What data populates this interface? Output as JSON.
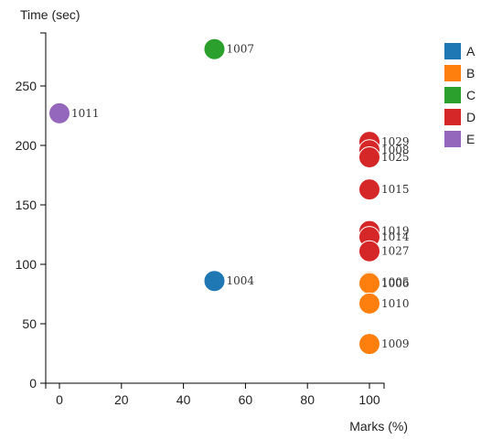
{
  "chart_data": {
    "type": "scatter",
    "xlabel": "Marks (%)",
    "ylabel": "Time (sec)",
    "xlim": [
      -5,
      105
    ],
    "ylim": [
      0,
      290
    ],
    "x_ticks": [
      0,
      20,
      40,
      60,
      80,
      100
    ],
    "y_ticks": [
      0,
      50,
      100,
      150,
      200,
      250
    ],
    "legend_position": "top-right",
    "series": [
      {
        "name": "A",
        "color": "#1f77b4",
        "points": [
          {
            "x": 50,
            "y": 86,
            "label": "1004"
          }
        ]
      },
      {
        "name": "B",
        "color": "#ff7f0e",
        "points": [
          {
            "x": 100,
            "y": 85,
            "label": "1005"
          },
          {
            "x": 100,
            "y": 84,
            "label": "1006"
          },
          {
            "x": 100,
            "y": 67,
            "label": "1010"
          },
          {
            "x": 100,
            "y": 33,
            "label": "1009"
          }
        ]
      },
      {
        "name": "C",
        "color": "#2ca02c",
        "points": [
          {
            "x": 50,
            "y": 281,
            "label": "1007"
          }
        ]
      },
      {
        "name": "D",
        "color": "#d62728",
        "points": [
          {
            "x": 100,
            "y": 203,
            "label": "1029"
          },
          {
            "x": 100,
            "y": 196,
            "label": "1008"
          },
          {
            "x": 100,
            "y": 190,
            "label": "1025"
          },
          {
            "x": 100,
            "y": 163,
            "label": "1015"
          },
          {
            "x": 100,
            "y": 128,
            "label": "1019"
          },
          {
            "x": 100,
            "y": 123,
            "label": "1014"
          },
          {
            "x": 100,
            "y": 111,
            "label": "1027"
          }
        ]
      },
      {
        "name": "E",
        "color": "#9467bd",
        "points": [
          {
            "x": 0,
            "y": 227,
            "label": "1011"
          }
        ]
      }
    ]
  }
}
